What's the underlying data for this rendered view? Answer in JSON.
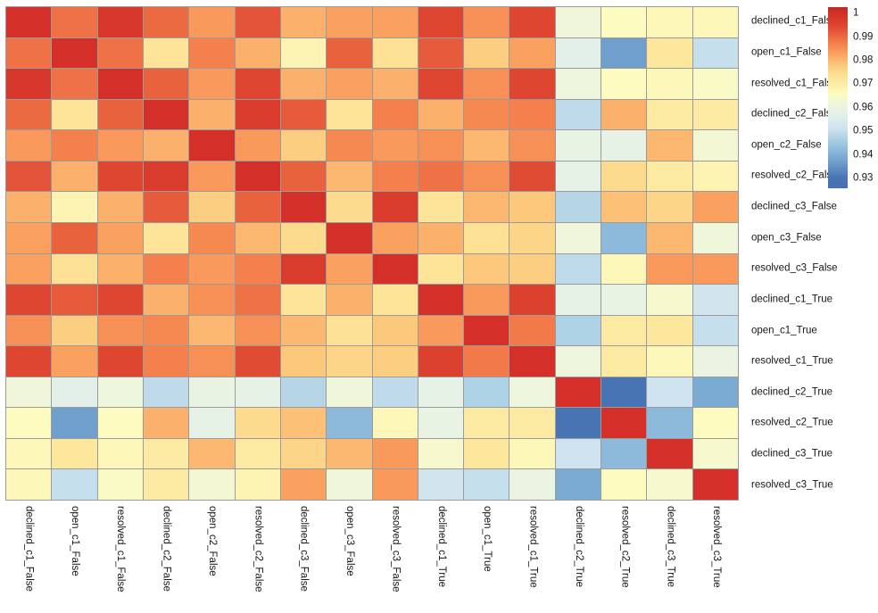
{
  "chart_data": {
    "type": "heatmap",
    "title": "",
    "labels": [
      "declined_c1_False",
      "open_c1_False",
      "resolved_c1_False",
      "declined_c2_False",
      "open_c2_False",
      "resolved_c2_False",
      "declined_c3_False",
      "open_c3_False",
      "resolved_c3_False",
      "declined_c1_True",
      "open_c1_True",
      "resolved_c1_True",
      "declined_c2_True",
      "resolved_c2_True",
      "declined_c3_True",
      "resolved_c3_True"
    ],
    "matrix": [
      [
        1.0,
        0.989,
        0.998,
        0.99,
        0.984,
        0.993,
        0.981,
        0.983,
        0.983,
        0.995,
        0.985,
        0.995,
        0.962,
        0.966,
        0.967,
        0.967
      ],
      [
        0.989,
        1.0,
        0.989,
        0.973,
        0.987,
        0.981,
        0.968,
        0.991,
        0.974,
        0.992,
        0.977,
        0.983,
        0.957,
        0.937,
        0.972,
        0.95
      ],
      [
        0.998,
        0.989,
        1.0,
        0.991,
        0.984,
        0.995,
        0.981,
        0.983,
        0.981,
        0.995,
        0.985,
        0.995,
        0.961,
        0.966,
        0.967,
        0.965
      ],
      [
        0.99,
        0.973,
        0.991,
        1.0,
        0.981,
        0.997,
        0.992,
        0.973,
        0.987,
        0.981,
        0.986,
        0.987,
        0.949,
        0.981,
        0.971,
        0.971
      ],
      [
        0.984,
        0.987,
        0.984,
        0.981,
        1.0,
        0.984,
        0.977,
        0.986,
        0.984,
        0.985,
        0.98,
        0.985,
        0.959,
        0.958,
        0.98,
        0.963
      ],
      [
        0.993,
        0.981,
        0.995,
        0.997,
        0.984,
        1.0,
        0.991,
        0.98,
        0.987,
        0.989,
        0.985,
        0.994,
        0.958,
        0.975,
        0.971,
        0.968
      ],
      [
        0.981,
        0.968,
        0.981,
        0.992,
        0.977,
        0.991,
        1.0,
        0.975,
        0.997,
        0.973,
        0.98,
        0.978,
        0.948,
        0.979,
        0.976,
        0.983
      ],
      [
        0.983,
        0.991,
        0.983,
        0.973,
        0.986,
        0.98,
        0.975,
        1.0,
        0.983,
        0.981,
        0.974,
        0.976,
        0.962,
        0.942,
        0.98,
        0.962
      ],
      [
        0.983,
        0.974,
        0.981,
        0.987,
        0.984,
        0.987,
        0.997,
        0.983,
        1.0,
        0.973,
        0.978,
        0.977,
        0.949,
        0.967,
        0.984,
        0.984
      ],
      [
        0.995,
        0.992,
        0.995,
        0.981,
        0.985,
        0.989,
        0.973,
        0.981,
        0.973,
        1.0,
        0.984,
        0.996,
        0.958,
        0.959,
        0.964,
        0.952
      ],
      [
        0.985,
        0.977,
        0.985,
        0.986,
        0.98,
        0.985,
        0.98,
        0.974,
        0.978,
        0.984,
        1.0,
        0.988,
        0.947,
        0.971,
        0.972,
        0.95
      ],
      [
        0.995,
        0.983,
        0.995,
        0.987,
        0.985,
        0.994,
        0.978,
        0.976,
        0.977,
        0.996,
        0.988,
        1.0,
        0.961,
        0.971,
        0.967,
        0.96
      ],
      [
        0.962,
        0.957,
        0.961,
        0.949,
        0.959,
        0.958,
        0.948,
        0.962,
        0.949,
        0.958,
        0.947,
        0.961,
        1.0,
        0.93,
        0.951,
        0.939
      ],
      [
        0.966,
        0.937,
        0.966,
        0.981,
        0.958,
        0.975,
        0.979,
        0.942,
        0.967,
        0.959,
        0.971,
        0.971,
        0.93,
        1.0,
        0.942,
        0.966
      ],
      [
        0.967,
        0.972,
        0.967,
        0.971,
        0.98,
        0.971,
        0.976,
        0.98,
        0.984,
        0.964,
        0.972,
        0.967,
        0.951,
        0.942,
        1.0,
        0.964
      ],
      [
        0.967,
        0.95,
        0.965,
        0.971,
        0.963,
        0.968,
        0.983,
        0.962,
        0.984,
        0.952,
        0.95,
        0.96,
        0.939,
        0.966,
        0.964,
        1.0
      ]
    ],
    "colormap": {
      "name": "RdYlBu_r",
      "stops": [
        [
          0.93,
          "#4874b4"
        ],
        [
          0.938,
          "#74a6d0"
        ],
        [
          0.9455,
          "#a2cbe3"
        ],
        [
          0.951,
          "#cee3ef"
        ],
        [
          0.9575,
          "#e5f1e8"
        ],
        [
          0.962,
          "#eff6da"
        ],
        [
          0.966,
          "#fdfbbf"
        ],
        [
          0.97,
          "#fdeda6"
        ],
        [
          0.974,
          "#fde194"
        ],
        [
          0.978,
          "#fcc87c"
        ],
        [
          0.9825,
          "#fba562"
        ],
        [
          0.986,
          "#f68851"
        ],
        [
          0.99,
          "#ec6a42"
        ],
        [
          0.994,
          "#e04b33"
        ],
        [
          0.9975,
          "#d83a2b"
        ],
        [
          1.0,
          "#d43029"
        ]
      ],
      "over_color": "#bf2b27",
      "under_color": "#4a6fb1"
    },
    "colorbar": {
      "ticks": [
        {
          "label": "1",
          "value": 1.0
        },
        {
          "label": "0.99",
          "value": 0.99
        },
        {
          "label": "0.98",
          "value": 0.98
        },
        {
          "label": "0.97",
          "value": 0.97
        },
        {
          "label": "0.96",
          "value": 0.96
        },
        {
          "label": "0.95",
          "value": 0.95
        },
        {
          "label": "0.94",
          "value": 0.94
        },
        {
          "label": "0.93",
          "value": 0.93
        }
      ],
      "top_value": 1.0027,
      "bottom_value": 0.9258
    },
    "grid_line_color": "#9b9b9b",
    "background": "#ffffff",
    "legend_position": "right",
    "grid": true
  }
}
